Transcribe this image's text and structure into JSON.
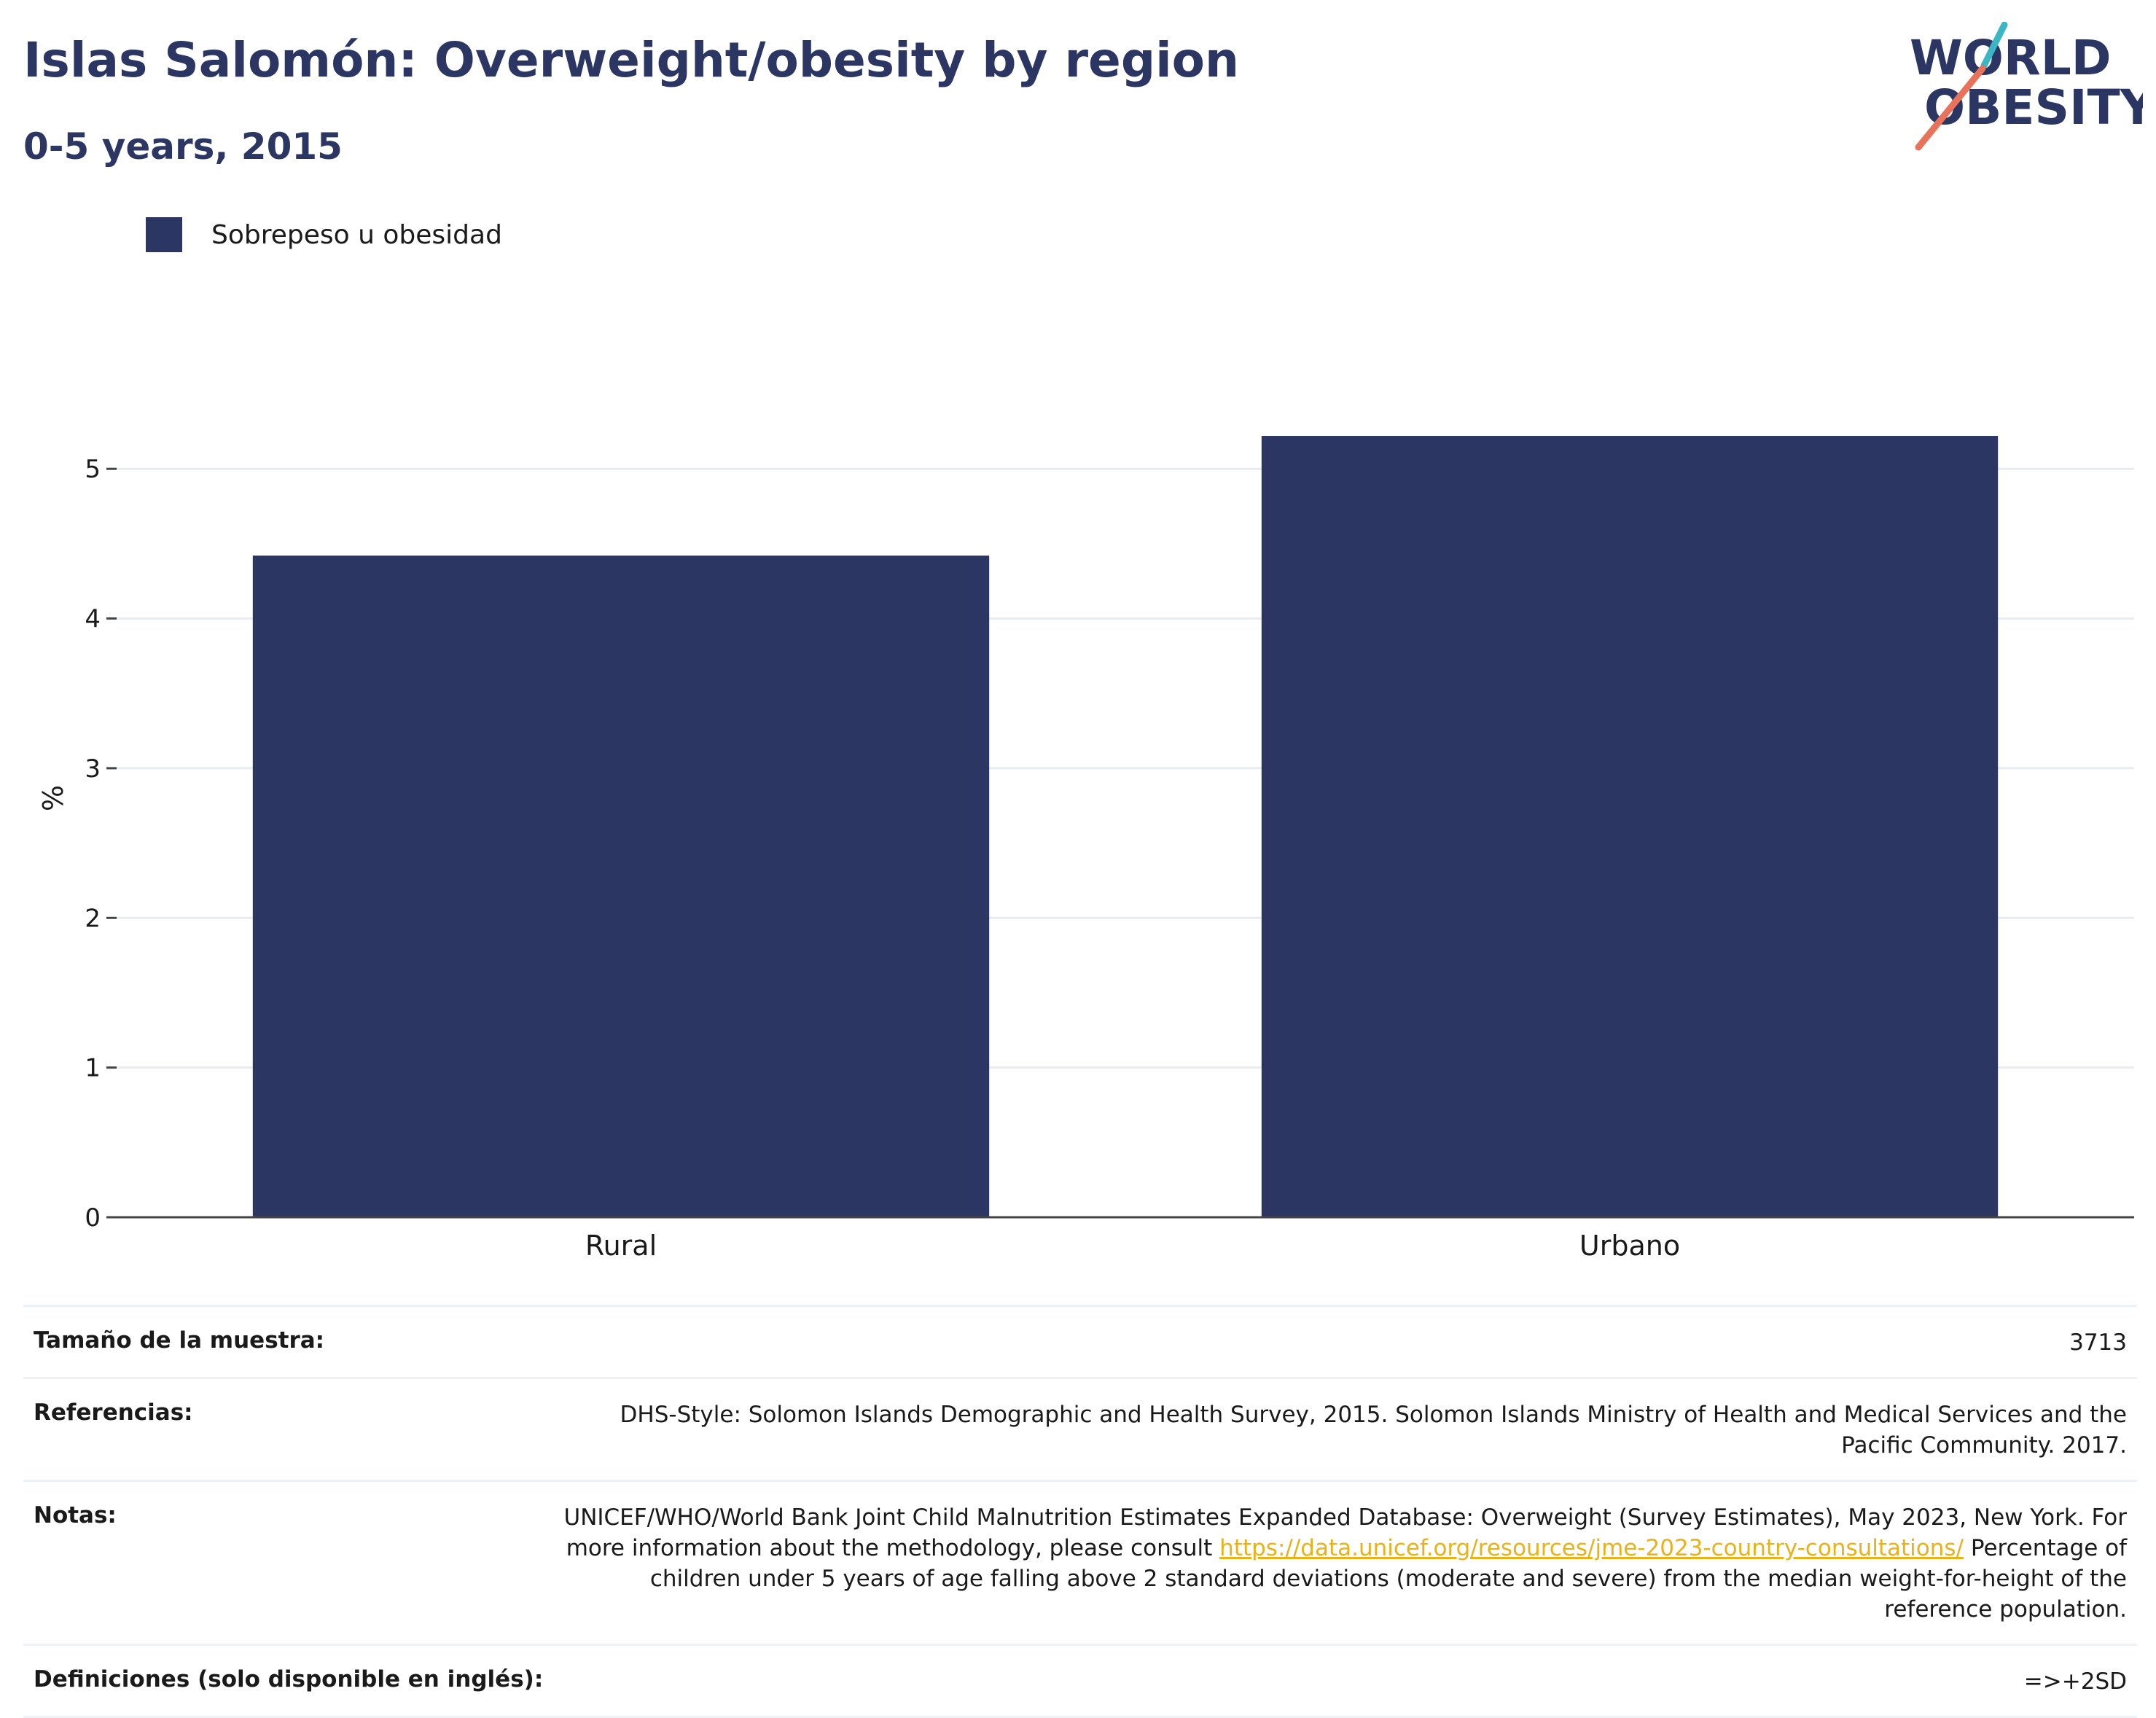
{
  "header": {
    "title": "Islas Salomón: Overweight/obesity by region",
    "subtitle": "0-5 years, 2015"
  },
  "logo": {
    "line1": "WORLD",
    "line2": "OBESITY"
  },
  "colors": {
    "bar": "#2b3663",
    "accent_teal": "#3cb6c4",
    "accent_coral": "#e8735a",
    "link": "#e8b21a"
  },
  "chart_data": {
    "type": "bar",
    "categories": [
      "Rural",
      "Urbano"
    ],
    "series": [
      {
        "name": "Sobrepeso u obesidad",
        "values": [
          4.42,
          5.22
        ]
      }
    ],
    "ylabel": "%",
    "xlabel": "",
    "ylim": [
      0,
      5.6
    ],
    "yticks": [
      0,
      1,
      2,
      3,
      4,
      5
    ],
    "grid": true,
    "legend": "top-left"
  },
  "info": {
    "sample_label": "Tamaño de la muestra:",
    "sample_value": "3713",
    "refs_label": "Referencias:",
    "refs_value": "DHS-Style: Solomon Islands Demographic and Health Survey, 2015. Solomon Islands Ministry of Health and Medical Services and the Pacific Community. 2017.",
    "notes_label": "Notas:",
    "notes_before": "UNICEF/WHO/World Bank Joint Child Malnutrition Estimates Expanded Database: Overweight (Survey Estimates), May 2023, New York. For more information about the methodology, please consult ",
    "notes_link": "https://data.unicef.org/resources/jme-2023-country-consultations/",
    "notes_after": " Percentage of children under 5 years of age falling above 2 standard deviations (moderate and severe) from the median weight-for-height of the reference population.",
    "defs_label": "Definiciones (solo disponible en inglés):",
    "defs_value": "=>+2SD"
  }
}
